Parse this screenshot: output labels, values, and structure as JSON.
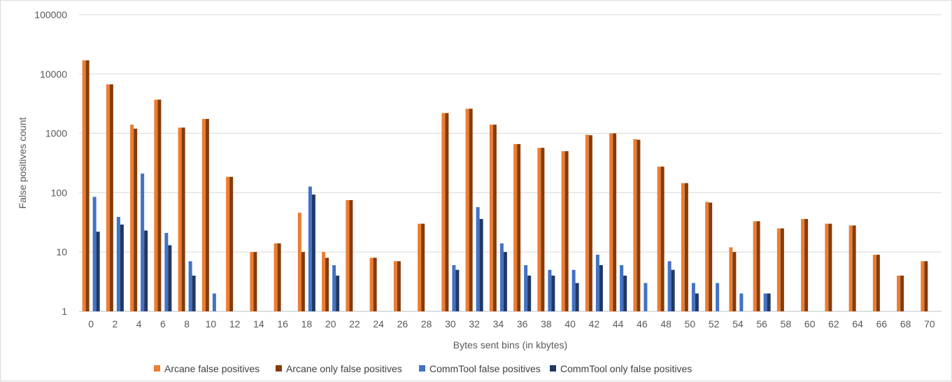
{
  "chart_data": {
    "type": "bar",
    "title": "",
    "xlabel": "Bytes sent bins (in kbytes)",
    "ylabel": "False positives count",
    "yscale": "log",
    "ylim": [
      1,
      100000
    ],
    "yticks": [
      "1",
      "10",
      "100",
      "1000",
      "10000",
      "100000"
    ],
    "grid": "horizontal",
    "legend_position": "bottom",
    "categories": [
      "0",
      "2",
      "4",
      "6",
      "8",
      "10",
      "12",
      "14",
      "16",
      "18",
      "20",
      "22",
      "24",
      "26",
      "28",
      "30",
      "32",
      "34",
      "36",
      "38",
      "40",
      "42",
      "44",
      "46",
      "48",
      "50",
      "52",
      "54",
      "56",
      "58",
      "60",
      "62",
      "64",
      "66",
      "68",
      "70"
    ],
    "series": [
      {
        "name": "Arcane false positives",
        "color": "#ed7d31",
        "values": [
          17000,
          6700,
          1400,
          3700,
          1250,
          1750,
          185,
          10,
          14,
          46,
          10,
          75,
          8,
          7,
          30,
          2200,
          2600,
          1400,
          660,
          570,
          500,
          950,
          1000,
          800,
          275,
          145,
          70,
          12,
          33,
          25,
          36,
          30,
          28,
          9,
          4,
          7
        ]
      },
      {
        "name": "Arcane only false positives",
        "color": "#843c0c",
        "values": [
          17000,
          6700,
          1200,
          3700,
          1250,
          1750,
          185,
          10,
          14,
          10,
          8,
          75,
          8,
          7,
          30,
          2200,
          2600,
          1400,
          660,
          570,
          500,
          930,
          1000,
          780,
          275,
          145,
          68,
          10,
          33,
          25,
          36,
          30,
          28,
          9,
          4,
          7
        ]
      },
      {
        "name": "CommTool false positives",
        "color": "#4472c4",
        "values": [
          85,
          39,
          210,
          21,
          7,
          2,
          null,
          null,
          null,
          127,
          6,
          null,
          null,
          null,
          null,
          6,
          57,
          14,
          6,
          5,
          5,
          9,
          6,
          3,
          7,
          3,
          3,
          2,
          2,
          null,
          null,
          null,
          null,
          null,
          null,
          null
        ]
      },
      {
        "name": "CommTool only false positives",
        "color": "#203864",
        "values": [
          22,
          29,
          23,
          13,
          4,
          null,
          null,
          null,
          null,
          93,
          4,
          null,
          null,
          null,
          null,
          5,
          36,
          10,
          4,
          4,
          3,
          6,
          4,
          null,
          5,
          2,
          null,
          null,
          2,
          null,
          null,
          null,
          null,
          null,
          null,
          null
        ]
      }
    ]
  }
}
